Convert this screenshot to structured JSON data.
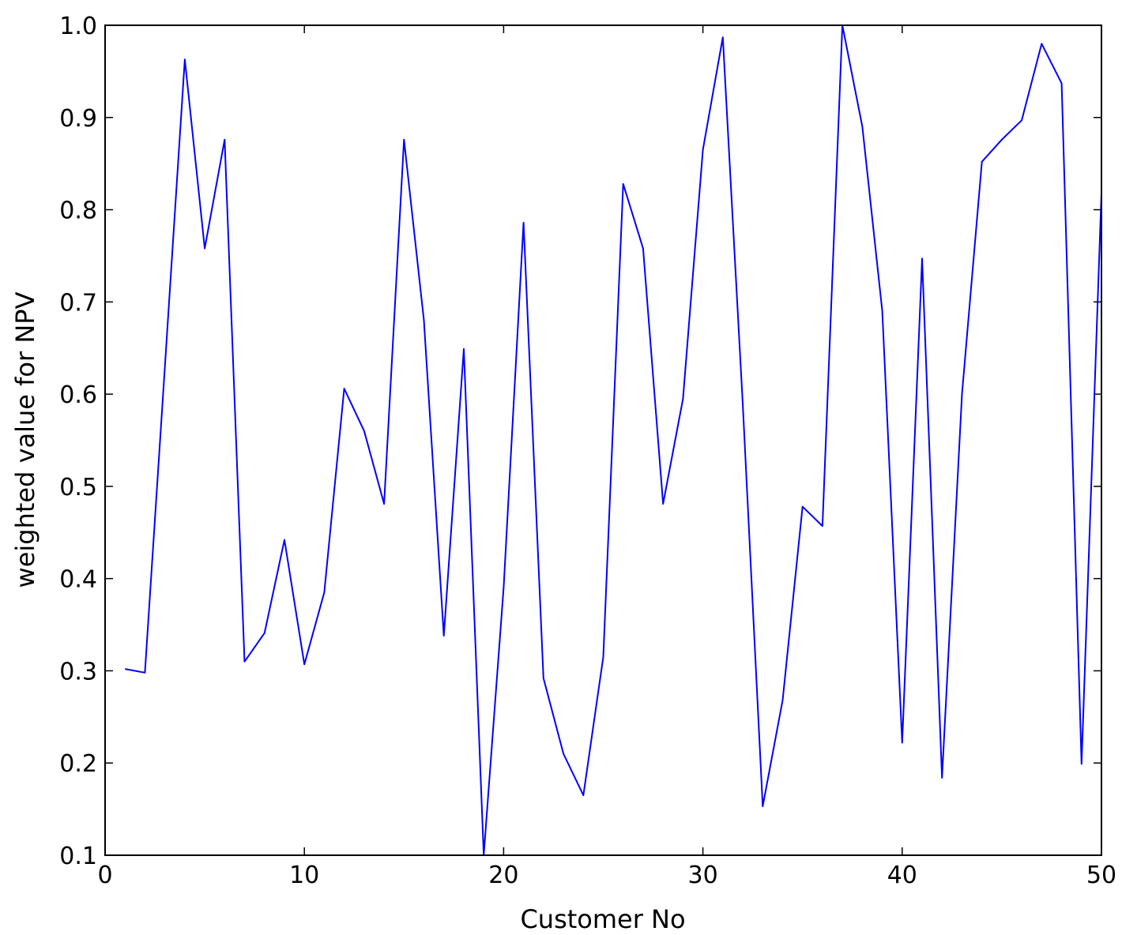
{
  "chart_data": {
    "type": "line",
    "title": "",
    "xlabel": "Customer No",
    "ylabel": "weighted value for NPV",
    "xlim": [
      0,
      50
    ],
    "ylim": [
      0.1,
      1.0
    ],
    "x_ticks": [
      "0",
      "10",
      "20",
      "30",
      "40",
      "50"
    ],
    "y_ticks": [
      "0.1",
      "0.2",
      "0.3",
      "0.4",
      "0.5",
      "0.6",
      "0.7",
      "0.8",
      "0.9",
      "1.0"
    ],
    "grid": false,
    "legend": "none",
    "line_color": "#0000ff",
    "series": [
      {
        "x": [
          1,
          2,
          3,
          4,
          5,
          6,
          7,
          8,
          9,
          10,
          11,
          12,
          13,
          14,
          15,
          16,
          17,
          18,
          19,
          20,
          21,
          22,
          23,
          24,
          25,
          26,
          27,
          28,
          29,
          30,
          31,
          32,
          33,
          34,
          35,
          36,
          37,
          38,
          39,
          40,
          41,
          42,
          43,
          44,
          45,
          46,
          47,
          48,
          49,
          50
        ],
        "values": [
          0.302,
          0.298,
          0.63,
          0.963,
          0.758,
          0.876,
          0.31,
          0.341,
          0.442,
          0.307,
          0.385,
          0.606,
          0.56,
          0.481,
          0.876,
          0.68,
          0.338,
          0.649,
          0.1,
          0.39,
          0.786,
          0.292,
          0.21,
          0.165,
          0.315,
          0.828,
          0.758,
          0.481,
          0.595,
          0.865,
          0.987,
          0.59,
          0.153,
          0.268,
          0.478,
          0.457,
          1.0,
          0.89,
          0.69,
          0.222,
          0.747,
          0.184,
          0.6,
          0.852,
          0.876,
          0.897,
          0.98,
          0.937,
          0.199,
          0.818
        ]
      }
    ]
  }
}
